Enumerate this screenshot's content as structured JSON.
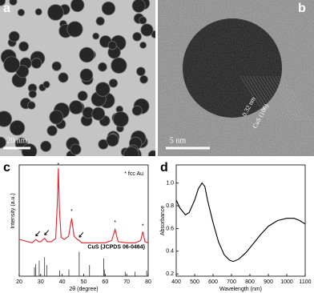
{
  "images": [
    {
      "label": "a",
      "scale_bar": "20 nm"
    },
    {
      "label": "b",
      "scale_bar": "5 nm",
      "annotations": [
        "0.32 nm",
        "CuS (106)"
      ]
    }
  ],
  "chart_data": [
    {
      "type": "line",
      "panel_label": "c",
      "x_label": "2θ (degree)",
      "y_label": "Intensity (a.u.)",
      "legend_note": "* fcc Au",
      "xlim": [
        20,
        80
      ],
      "xticks": [
        20,
        30,
        40,
        50,
        60,
        70,
        80
      ],
      "ylim": [
        0,
        100
      ],
      "series": [
        {
          "color": "#e8202a",
          "x": [
            20,
            22,
            24,
            26,
            27.7,
            29,
            30,
            31.8,
            33,
            35,
            37,
            37.8,
            38.2,
            38.7,
            39.5,
            41,
            43,
            44.4,
            45.5,
            47,
            48,
            49,
            52,
            56,
            60,
            63,
            64.6,
            66,
            70,
            74,
            76.5,
            77.5,
            78.5,
            80
          ],
          "values": [
            33,
            32,
            31,
            30,
            33,
            31,
            31,
            34,
            31,
            31,
            34,
            70,
            97,
            60,
            35,
            33,
            36,
            52,
            36,
            33,
            32,
            30,
            30,
            30,
            30,
            32,
            42,
            31,
            30,
            30,
            32,
            40,
            31,
            30
          ]
        },
        {
          "name": "CuS (JCPDS 06-0464)",
          "color": "#333333",
          "style": "stick",
          "x": [
            27.1,
            27.7,
            29.3,
            31.8,
            32.8,
            38.8,
            43.1,
            47.9,
            52.7,
            59.3,
            59.6,
            69.3,
            73.9,
            79.3
          ],
          "values": [
            8,
            11,
            14,
            17,
            10,
            5,
            6,
            22,
            10,
            16,
            6,
            4,
            4,
            5
          ]
        }
      ],
      "markers": {
        "label": "*",
        "x": [
          38.2,
          44.4,
          64.6,
          77.5
        ],
        "y": [
          100,
          58,
          48,
          45
        ]
      },
      "arrows": {
        "x": [
          27.7,
          31.8,
          47.9
        ],
        "y": [
          36,
          37,
          35
        ]
      }
    },
    {
      "type": "line",
      "panel_label": "d",
      "x_label": "Wavelength (nm)",
      "y_label": "Absorbance",
      "xlim": [
        400,
        1100
      ],
      "xticks": [
        400,
        500,
        600,
        700,
        800,
        900,
        1000,
        1100
      ],
      "ylim": [
        0.18,
        1.16
      ],
      "yticks": [
        0.2,
        0.4,
        0.6,
        0.8,
        {
          "value": 1,
          "label": "1.0"
        }
      ],
      "series": [
        {
          "color": "#000000",
          "x": [
            400,
            420,
            450,
            470,
            500,
            520,
            540,
            555,
            570,
            600,
            630,
            660,
            690,
            710,
            740,
            780,
            820,
            860,
            900,
            950,
            1000,
            1040,
            1070,
            1100
          ],
          "values": [
            0.85,
            0.78,
            0.72,
            0.74,
            0.85,
            0.95,
            1.0,
            0.97,
            0.85,
            0.65,
            0.48,
            0.37,
            0.32,
            0.31,
            0.33,
            0.39,
            0.47,
            0.55,
            0.62,
            0.67,
            0.69,
            0.69,
            0.67,
            0.64
          ]
        }
      ]
    }
  ]
}
